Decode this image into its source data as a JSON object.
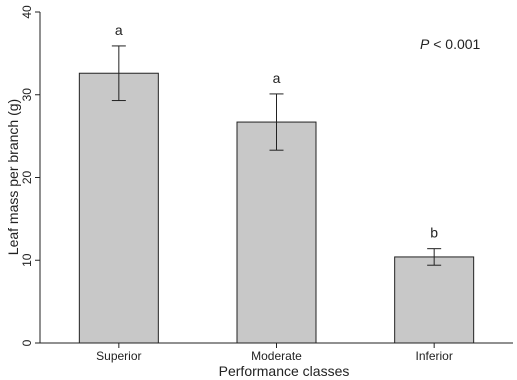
{
  "chart_data": {
    "type": "bar",
    "xlabel": "Performance classes",
    "ylabel": "Leaf mass per branch (g)",
    "ylim": [
      0,
      40
    ],
    "yticks": [
      0,
      10,
      20,
      30,
      40
    ],
    "categories": [
      "Superior",
      "Moderate",
      "Inferior"
    ],
    "values": [
      32.6,
      26.7,
      10.4
    ],
    "errors": [
      3.3,
      3.4,
      1.0
    ],
    "significance_letters": [
      "a",
      "a",
      "b"
    ],
    "annotation": {
      "italic": "P",
      "rest": " < 0.001"
    },
    "grid": false,
    "legend": "none",
    "colors": {
      "bar_fill": "#c8c8c8",
      "bar_stroke": "#222222",
      "axis": "#222222"
    }
  }
}
